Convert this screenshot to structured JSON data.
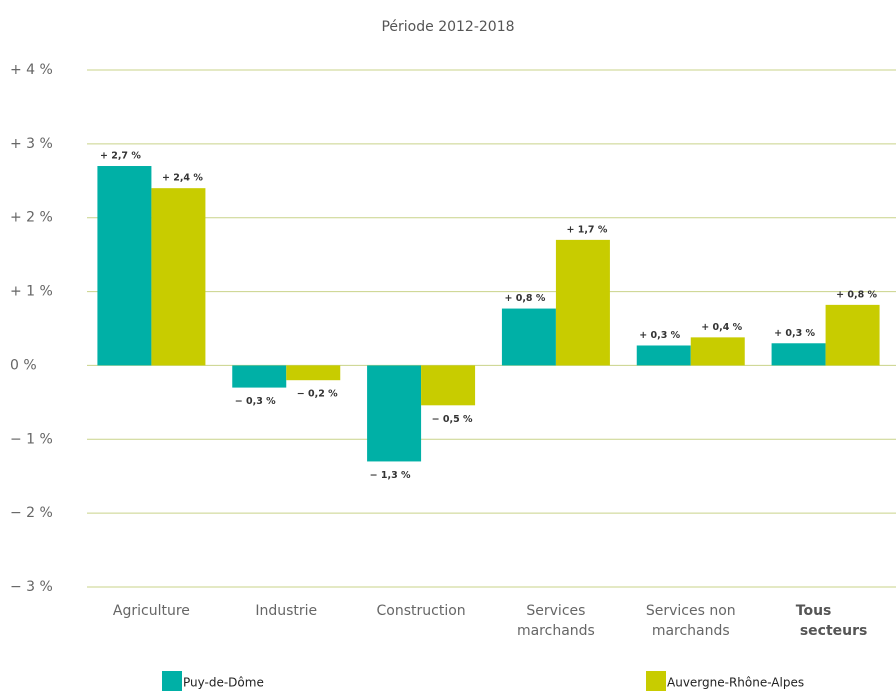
{
  "chart_data": {
    "type": "bar",
    "title": "Période 2012-2018",
    "categories": [
      [
        "Agriculture"
      ],
      [
        "Industrie"
      ],
      [
        "Construction"
      ],
      [
        "Services",
        "marchands"
      ],
      [
        "Services non",
        "marchands"
      ],
      [
        "Tous",
        "secteurs"
      ]
    ],
    "series": [
      {
        "name": "Puy-de-Dôme",
        "color": "#00b0a6",
        "values": [
          2.7,
          -0.3,
          -1.3,
          0.77,
          0.27,
          0.3
        ],
        "value_labels": [
          "+ 2,7 %",
          "− 0,3 %",
          "− 1,3 %",
          "+ 0,8 %",
          "+ 0,3 %",
          "+ 0,3 %"
        ]
      },
      {
        "name": "Auvergne-Rhône-Alpes",
        "color": "#c8cc00",
        "values": [
          2.4,
          -0.2,
          -0.54,
          1.7,
          0.38,
          0.82
        ],
        "value_labels": [
          "+ 2,4 %",
          "− 0,2 %",
          "− 0,5 %",
          "+ 1,7 %",
          "+ 0,4 %",
          "+ 0,8 %"
        ]
      }
    ],
    "ylim": [
      -3,
      4
    ],
    "yticks": [
      {
        "value": 4,
        "label": "+ 4 %"
      },
      {
        "value": 3,
        "label": "+ 3 %"
      },
      {
        "value": 2,
        "label": "+ 2 %"
      },
      {
        "value": 1,
        "label": "+ 1 %"
      },
      {
        "value": 0,
        "label": "0 %"
      },
      {
        "value": -1,
        "label": "− 1 %"
      },
      {
        "value": -2,
        "label": "− 2 %"
      },
      {
        "value": -3,
        "label": "− 3 %"
      }
    ],
    "grid": true
  }
}
